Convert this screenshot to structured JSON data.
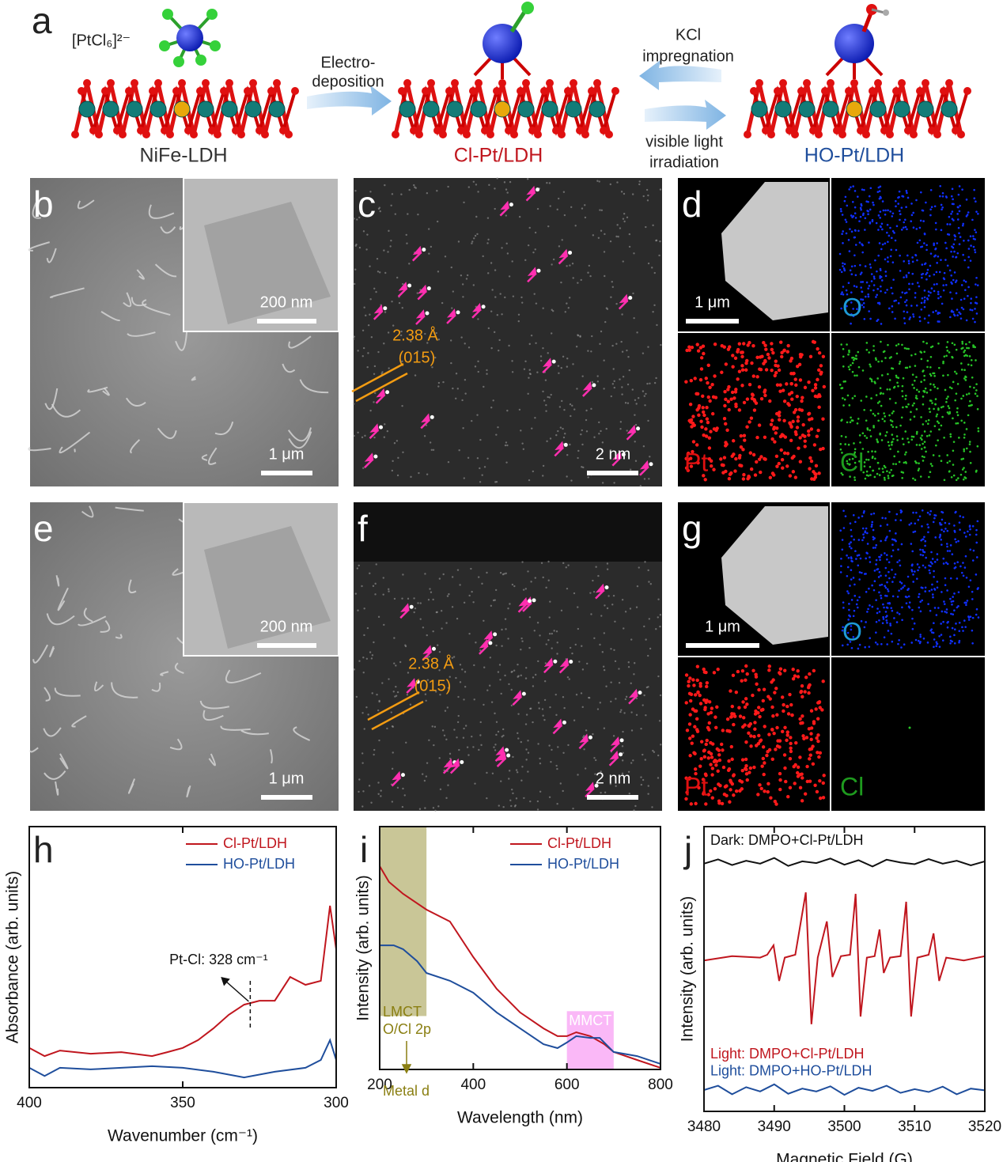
{
  "labels": [
    "a",
    "b",
    "c",
    "d",
    "e",
    "f",
    "g",
    "h",
    "i",
    "j"
  ],
  "scheme": {
    "precursor": "[PtCl₆]²⁻",
    "step1": [
      "Electro-",
      "deposition"
    ],
    "step2": [
      "KCl",
      "impregnation"
    ],
    "step3": [
      "visible light",
      "irradiation"
    ],
    "materials": [
      "NiFe-LDH",
      "Cl-Pt/LDH",
      "HO-Pt/LDH"
    ]
  },
  "micrographs": {
    "b": {
      "scale": "1 μm",
      "inset_scale": "200 nm"
    },
    "c": {
      "scale": "2 nm",
      "spacing": "2.38 Å",
      "plane": "(015)"
    },
    "d": {
      "scale": "1 μm",
      "elements": [
        "O",
        "Pt",
        "Cl"
      ]
    },
    "e": {
      "scale": "1 μm",
      "inset_scale": "200 nm"
    },
    "f": {
      "scale": "2 nm",
      "spacing": "2.38 Å",
      "plane": "(015)"
    },
    "g": {
      "scale": "1 μm",
      "elements": [
        "O",
        "Pt",
        "Cl"
      ]
    }
  },
  "chart_data": [
    {
      "type": "line",
      "xlabel": "Wavenumber (cm⁻¹)",
      "ylabel": "Absorbance (arb. units)",
      "xlim": [
        400,
        300
      ],
      "xticks": [
        400,
        350,
        300
      ],
      "ylim": [
        0,
        1
      ],
      "legend": "upper right",
      "annotation": {
        "text": "Pt-Cl: 328 cm⁻¹",
        "x": 328
      },
      "series": [
        {
          "name": "Cl-Pt/LDH",
          "color": "#c0161e",
          "x": [
            400,
            395,
            390,
            380,
            370,
            360,
            355,
            350,
            345,
            340,
            335,
            330,
            328,
            325,
            320,
            315,
            310,
            305,
            302,
            300
          ],
          "values": [
            0.152,
            0.121,
            0.142,
            0.13,
            0.136,
            0.121,
            0.136,
            0.152,
            0.182,
            0.227,
            0.279,
            0.318,
            0.324,
            0.333,
            0.333,
            0.424,
            0.394,
            0.409,
            0.697,
            0.53
          ]
        },
        {
          "name": "HO-Pt/LDH",
          "color": "#1f4e9c",
          "x": [
            400,
            395,
            390,
            380,
            370,
            360,
            350,
            340,
            330,
            320,
            310,
            305,
            302,
            300
          ],
          "values": [
            0.076,
            0.045,
            0.076,
            0.07,
            0.076,
            0.082,
            0.076,
            0.061,
            0.039,
            0.061,
            0.076,
            0.106,
            0.182,
            0.106
          ]
        }
      ]
    },
    {
      "type": "line",
      "xlabel": "Wavelength (nm)",
      "ylabel": "Intensity (arb. units)",
      "xlim": [
        200,
        800
      ],
      "xticks": [
        200,
        400,
        600,
        800
      ],
      "ylim": [
        0,
        1
      ],
      "legend": "upper right",
      "bands": [
        {
          "labels": [
            "LMCT",
            "O/Cl 2p",
            "Metal d"
          ],
          "range": [
            200,
            300
          ],
          "color": "#c9c697"
        },
        {
          "labels": [
            "MMCT"
          ],
          "range": [
            600,
            700
          ],
          "color": "#fab8f7"
        }
      ],
      "series": [
        {
          "name": "Cl-Pt/LDH",
          "color": "#c0161e",
          "x": [
            200,
            220,
            250,
            300,
            350,
            400,
            450,
            500,
            550,
            580,
            600,
            620,
            650,
            680,
            700,
            750,
            800
          ],
          "values": [
            0.837,
            0.772,
            0.723,
            0.658,
            0.609,
            0.463,
            0.332,
            0.235,
            0.169,
            0.137,
            0.137,
            0.153,
            0.137,
            0.104,
            0.072,
            0.039,
            0.007
          ]
        },
        {
          "name": "HO-Pt/LDH",
          "color": "#1f4e9c",
          "x": [
            200,
            230,
            250,
            280,
            300,
            350,
            400,
            450,
            500,
            550,
            580,
            600,
            620,
            650,
            670,
            700,
            750,
            800
          ],
          "values": [
            0.511,
            0.511,
            0.495,
            0.446,
            0.397,
            0.365,
            0.316,
            0.235,
            0.169,
            0.104,
            0.088,
            0.111,
            0.137,
            0.13,
            0.13,
            0.072,
            0.055,
            0.023
          ]
        }
      ]
    },
    {
      "type": "line",
      "xlabel": "Magnetic Field (G)",
      "ylabel": "Intensity (arb. units)",
      "xlim": [
        3480,
        3520
      ],
      "xticks": [
        3480,
        3490,
        3500,
        3510,
        3520
      ],
      "ylim": [
        0,
        1
      ],
      "legend": "inline",
      "series": [
        {
          "name": "Dark: DMPO+Cl-Pt/LDH",
          "color": "#111111",
          "x": [
            3480,
            3482,
            3484,
            3486,
            3488,
            3490,
            3492,
            3494,
            3496,
            3498,
            3500,
            3502,
            3504,
            3506,
            3508,
            3510,
            3512,
            3514,
            3516,
            3518,
            3520
          ],
          "values": [
            0.87,
            0.885,
            0.865,
            0.88,
            0.87,
            0.89,
            0.862,
            0.878,
            0.872,
            0.888,
            0.866,
            0.882,
            0.86,
            0.884,
            0.874,
            0.868,
            0.886,
            0.87,
            0.88,
            0.864,
            0.878
          ]
        },
        {
          "name": "Light: DMPO+Cl-Pt/LDH",
          "color": "#c0161e",
          "x": [
            3480,
            3484,
            3488,
            3489,
            3489.9,
            3490.7,
            3491.5,
            3493,
            3494.5,
            3495.3,
            3496.2,
            3497.5,
            3498.3,
            3499.5,
            3500.8,
            3501.6,
            3502.3,
            3503.2,
            3504.3,
            3505,
            3505.6,
            3506.5,
            3508,
            3508.8,
            3509.5,
            3510.4,
            3512,
            3512.7,
            3513.5,
            3514.5,
            3517,
            3520
          ],
          "values": [
            0.53,
            0.545,
            0.54,
            0.55,
            0.583,
            0.458,
            0.54,
            0.55,
            0.769,
            0.306,
            0.54,
            0.667,
            0.472,
            0.545,
            0.55,
            0.764,
            0.333,
            0.54,
            0.545,
            0.639,
            0.486,
            0.54,
            0.545,
            0.736,
            0.333,
            0.54,
            0.55,
            0.625,
            0.458,
            0.54,
            0.53,
            0.545
          ]
        },
        {
          "name": "Light: DMPO+HO-Pt/LDH",
          "color": "#1f4e9c",
          "x": [
            3480,
            3482,
            3484,
            3486,
            3488,
            3490,
            3492,
            3494,
            3496,
            3498,
            3500,
            3502,
            3504,
            3506,
            3508,
            3510,
            3512,
            3514,
            3516,
            3518,
            3520
          ],
          "values": [
            0.075,
            0.09,
            0.06,
            0.085,
            0.07,
            0.095,
            0.062,
            0.08,
            0.07,
            0.088,
            0.058,
            0.083,
            0.072,
            0.09,
            0.065,
            0.078,
            0.068,
            0.087,
            0.06,
            0.08,
            0.074
          ]
        }
      ]
    }
  ]
}
